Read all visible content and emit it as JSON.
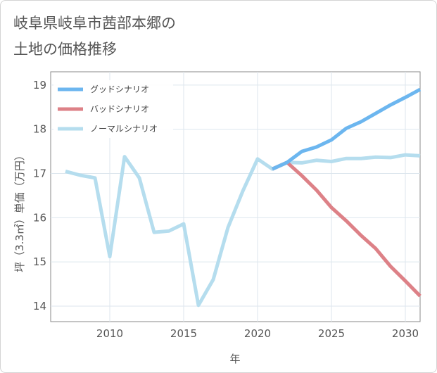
{
  "header": {
    "title_line1": "岐阜県岐阜市茜部本郷の",
    "title_line2": "土地の価格推移"
  },
  "chart_data": {
    "type": "line",
    "title": "岐阜県岐阜市茜部本郷の土地の価格推移",
    "xlabel": "年",
    "ylabel": "坪（3.3㎡）単価（万円）",
    "xlim": [
      2006,
      2031
    ],
    "ylim": [
      13.65,
      19.3
    ],
    "x_ticks": [
      2010,
      2015,
      2020,
      2025,
      2030
    ],
    "y_ticks": [
      14,
      15,
      16,
      17,
      18,
      19
    ],
    "grid": true,
    "legend_position": "top-left",
    "series": [
      {
        "name": "グッドシナリオ",
        "color": "#6cb6ef",
        "x": [
          2021,
          2022,
          2023,
          2024,
          2025,
          2026,
          2027,
          2028,
          2029,
          2030,
          2031
        ],
        "y": [
          17.1,
          17.25,
          17.5,
          17.6,
          17.76,
          18.02,
          18.17,
          18.36,
          18.55,
          18.72,
          18.9
        ]
      },
      {
        "name": "バッドシナリオ",
        "color": "#dd8187",
        "x": [
          2021,
          2022,
          2023,
          2024,
          2025,
          2026,
          2027,
          2028,
          2029,
          2030,
          2031
        ],
        "y": [
          17.1,
          17.25,
          16.95,
          16.62,
          16.23,
          15.93,
          15.6,
          15.3,
          14.9,
          14.57,
          14.23
        ]
      },
      {
        "name": "ノーマルシナリオ",
        "color": "#b5ddee",
        "x": [
          2007,
          2008,
          2009,
          2010,
          2011,
          2012,
          2013,
          2014,
          2015,
          2016,
          2017,
          2018,
          2019,
          2020,
          2021,
          2022,
          2023,
          2024,
          2025,
          2026,
          2027,
          2028,
          2029,
          2030,
          2031
        ],
        "y": [
          17.05,
          16.96,
          16.9,
          15.12,
          17.38,
          16.9,
          15.67,
          15.7,
          15.86,
          14.02,
          14.6,
          15.78,
          16.6,
          17.33,
          17.1,
          17.25,
          17.24,
          17.3,
          17.27,
          17.34,
          17.34,
          17.37,
          17.36,
          17.42,
          17.4
        ]
      }
    ]
  }
}
